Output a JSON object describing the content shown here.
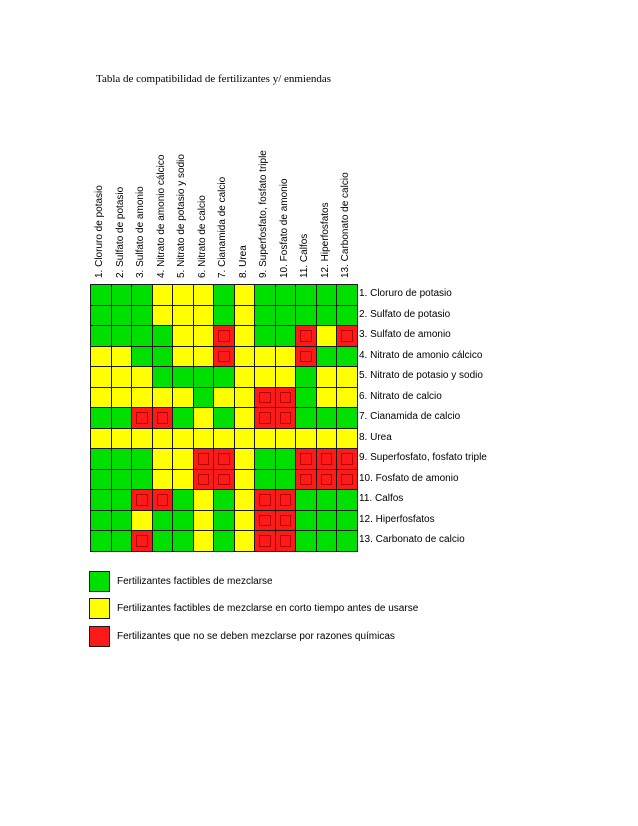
{
  "title": "Tabla de compatibilidad de fertilizantes y/ enmiendas",
  "columns": [
    "1. Cloruro de potasio",
    "2. Sulfato de potasio",
    "3. Sulfato de amonio",
    "4. Nitrato de amonio cálcico",
    "5. Nitrato de potasio y sodio",
    "6. Nitrato de calcio",
    "7. Cianamida de calcio",
    "8. Urea",
    "9. Superfosfato, fosfato triple",
    "10. Fosfato de amonio",
    "11. Calfos",
    "12. Hiperfosfatos",
    "13. Carbonato de calcio"
  ],
  "rows": [
    "1. Cloruro de potasio",
    "2. Sulfato de potasio",
    "3. Sulfato de amonio",
    "4. Nitrato de amonio cálcico",
    "5. Nitrato de potasio y sodio",
    "6. Nitrato de calcio",
    "7. Cianamida de calcio",
    "8. Urea",
    "9. Superfosfato, fosfato triple",
    "10. Fosfato de amonio",
    "11. Calfos",
    "12. Hiperfosfatos",
    "13. Carbonato de calcio"
  ],
  "matrix": [
    [
      "G",
      "G",
      "G",
      "Y",
      "Y",
      "Y",
      "G",
      "Y",
      "G",
      "G",
      "G",
      "G",
      "G"
    ],
    [
      "G",
      "G",
      "G",
      "Y",
      "Y",
      "Y",
      "G",
      "Y",
      "G",
      "G",
      "G",
      "G",
      "G"
    ],
    [
      "G",
      "G",
      "G",
      "G",
      "Y",
      "Y",
      "R",
      "Y",
      "G",
      "G",
      "R",
      "Y",
      "R"
    ],
    [
      "Y",
      "Y",
      "G",
      "G",
      "Y",
      "Y",
      "R",
      "Y",
      "Y",
      "Y",
      "R",
      "G",
      "G"
    ],
    [
      "Y",
      "Y",
      "Y",
      "G",
      "G",
      "G",
      "G",
      "Y",
      "Y",
      "Y",
      "G",
      "Y",
      "Y"
    ],
    [
      "Y",
      "Y",
      "Y",
      "Y",
      "Y",
      "G",
      "Y",
      "Y",
      "R",
      "R",
      "G",
      "Y",
      "Y"
    ],
    [
      "G",
      "G",
      "R",
      "R",
      "G",
      "Y",
      "G",
      "Y",
      "R",
      "R",
      "G",
      "G",
      "G"
    ],
    [
      "Y",
      "Y",
      "Y",
      "Y",
      "Y",
      "Y",
      "Y",
      "Y",
      "Y",
      "Y",
      "Y",
      "Y",
      "Y"
    ],
    [
      "G",
      "G",
      "G",
      "Y",
      "Y",
      "R",
      "R",
      "Y",
      "G",
      "G",
      "R",
      "R",
      "R"
    ],
    [
      "G",
      "G",
      "G",
      "Y",
      "Y",
      "R",
      "R",
      "Y",
      "G",
      "G",
      "R",
      "R",
      "R"
    ],
    [
      "G",
      "G",
      "R",
      "R",
      "G",
      "Y",
      "G",
      "Y",
      "R",
      "R",
      "G",
      "G",
      "G"
    ],
    [
      "G",
      "G",
      "Y",
      "G",
      "G",
      "Y",
      "G",
      "Y",
      "R",
      "R",
      "G",
      "G",
      "G"
    ],
    [
      "G",
      "G",
      "R",
      "G",
      "G",
      "Y",
      "G",
      "Y",
      "R",
      "R",
      "G",
      "G",
      "G"
    ]
  ],
  "colors": {
    "G": "#00e000",
    "Y": "#ffff00",
    "R": "#ff1a1a"
  },
  "legend": [
    {
      "color": "#00e000",
      "label": "Fertilizantes factibles de mezclarse"
    },
    {
      "color": "#ffff00",
      "label": "Fertilizantes factibles de mezclarse en corto tiempo antes de usarse"
    },
    {
      "color": "#ff1a1a",
      "label": "Fertilizantes que no se deben mezclarse por razones químicas"
    }
  ]
}
